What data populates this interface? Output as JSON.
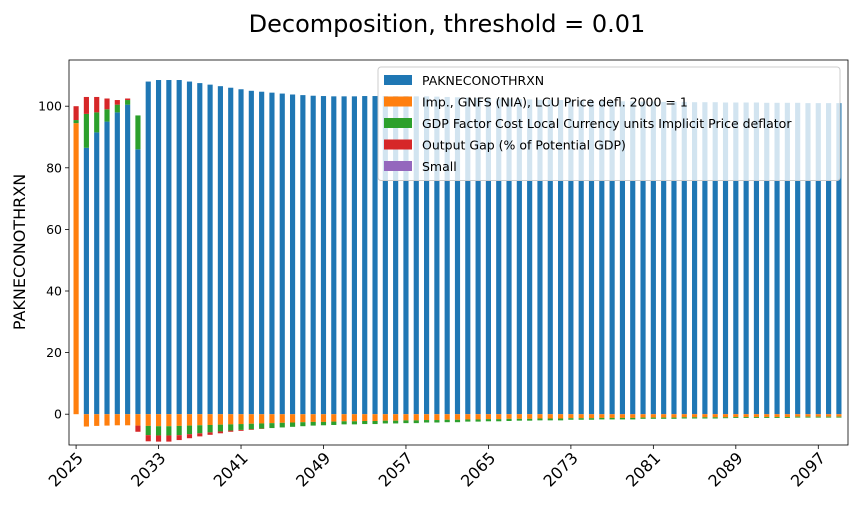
{
  "chart_data": {
    "type": "bar",
    "stacked": true,
    "title": "Decomposition, threshold = 0.01",
    "xlabel": "",
    "ylabel": "PAKNECONOTHRXN",
    "ylim": [
      -10,
      115
    ],
    "yticks": [
      0,
      20,
      40,
      60,
      80,
      100
    ],
    "xticks": [
      "2025",
      "2033",
      "2041",
      "2049",
      "2057",
      "2065",
      "2073",
      "2081",
      "2089",
      "2097"
    ],
    "grid": false,
    "legend_position": "top-right",
    "x": [
      2025,
      2026,
      2027,
      2028,
      2029,
      2030,
      2031,
      2032,
      2033,
      2034,
      2035,
      2036,
      2037,
      2038,
      2039,
      2040,
      2041,
      2042,
      2043,
      2044,
      2045,
      2046,
      2047,
      2048,
      2049,
      2050,
      2051,
      2052,
      2053,
      2054,
      2055,
      2056,
      2057,
      2058,
      2059,
      2060,
      2061,
      2062,
      2063,
      2064,
      2065,
      2066,
      2067,
      2068,
      2069,
      2070,
      2071,
      2072,
      2073,
      2074,
      2075,
      2076,
      2077,
      2078,
      2079,
      2080,
      2081,
      2082,
      2083,
      2084,
      2085,
      2086,
      2087,
      2088,
      2089,
      2090,
      2091,
      2092,
      2093,
      2094,
      2095,
      2096,
      2097,
      2098,
      2099
    ],
    "series": [
      {
        "name": "PAKNECONOTHRXN",
        "color": "#1f77b4",
        "values": [
          0,
          86.5,
          91.5,
          95,
          98,
          100.5,
          86,
          108,
          108.5,
          108.5,
          108.5,
          108,
          107.5,
          107,
          106.5,
          106,
          105.5,
          105,
          104.7,
          104.4,
          104.1,
          103.8,
          103.6,
          103.4,
          103.3,
          103.2,
          103.2,
          103.2,
          103.3,
          103.3,
          103.3,
          103.3,
          103.3,
          103.2,
          103.2,
          103.1,
          103,
          102.9,
          102.8,
          102.7,
          102.6,
          102.5,
          102.4,
          102.3,
          102.2,
          102.1,
          102.1,
          102,
          101.9,
          101.9,
          101.8,
          101.7,
          101.7,
          101.6,
          101.6,
          101.5,
          101.5,
          101.4,
          101.4,
          101.4,
          101.3,
          101.3,
          101.3,
          101.2,
          101.2,
          101.2,
          101.2,
          101.1,
          101.1,
          101.1,
          101.1,
          101,
          101,
          101,
          101
        ]
      },
      {
        "name": "Imp., GNFS (NIA), LCU Price defl. 2000 = 1",
        "color": "#ff7f0e",
        "values": [
          94.5,
          -4,
          -3.8,
          -3.7,
          -3.6,
          -3.6,
          -3.7,
          -3.8,
          -3.9,
          -3.9,
          -3.8,
          -3.7,
          -3.6,
          -3.5,
          -3.4,
          -3.3,
          -3.2,
          -3.1,
          -3,
          -2.9,
          -2.8,
          -2.7,
          -2.6,
          -2.5,
          -2.5,
          -2.4,
          -2.3,
          -2.3,
          -2.2,
          -2.2,
          -2.1,
          -2.1,
          -2,
          -2,
          -1.9,
          -1.9,
          -1.8,
          -1.8,
          -1.7,
          -1.7,
          -1.6,
          -1.6,
          -1.5,
          -1.5,
          -1.5,
          -1.4,
          -1.4,
          -1.4,
          -1.3,
          -1.3,
          -1.3,
          -1.2,
          -1.2,
          -1.2,
          -1.2,
          -1.1,
          -1.1,
          -1.1,
          -1.1,
          -1,
          -1,
          -1,
          -1,
          -1,
          -0.9,
          -0.9,
          -0.9,
          -0.9,
          -0.9,
          -0.9,
          -0.8,
          -0.8,
          -0.8,
          -0.8,
          -0.8
        ]
      },
      {
        "name": "GDP Factor Cost Local Currency units Implicit Price deflator",
        "color": "#2ca02c",
        "values": [
          1,
          11,
          6.5,
          4,
          2.5,
          1.5,
          11,
          -3,
          -3,
          -3,
          -3,
          -2.8,
          -2.6,
          -2.4,
          -2.2,
          -2,
          -1.9,
          -1.8,
          -1.7,
          -1.6,
          -1.5,
          -1.4,
          -1.3,
          -1.2,
          -1.1,
          -1.1,
          -1,
          -1,
          -1,
          -1,
          -0.9,
          -0.9,
          -0.9,
          -0.9,
          -0.8,
          -0.8,
          -0.8,
          -0.8,
          -0.7,
          -0.7,
          -0.7,
          -0.7,
          -0.7,
          -0.6,
          -0.6,
          -0.6,
          -0.6,
          -0.6,
          -0.5,
          -0.5,
          -0.5,
          -0.5,
          -0.5,
          -0.5,
          -0.5,
          -0.4,
          -0.4,
          -0.4,
          -0.4,
          -0.4,
          -0.4,
          -0.4,
          -0.4,
          -0.3,
          -0.3,
          -0.3,
          -0.3,
          -0.3,
          -0.3,
          -0.3,
          -0.3,
          -0.3,
          -0.3,
          -0.3,
          -0.3
        ]
      },
      {
        "name": "Output Gap (% of Potential GDP)",
        "color": "#d62728",
        "values": [
          4.5,
          5.5,
          5,
          3.5,
          1.5,
          0.5,
          -2,
          -2,
          -2,
          -2,
          -1.6,
          -1.3,
          -1,
          -0.8,
          -0.6,
          -0.4,
          -0.3,
          -0.2,
          -0.1,
          0,
          0,
          0,
          0,
          0,
          0,
          0,
          0,
          0,
          0,
          0,
          0,
          0,
          0,
          0,
          0,
          0,
          0,
          0,
          0,
          0,
          0,
          0,
          0,
          0,
          0,
          0,
          0,
          0,
          0,
          0,
          0,
          0,
          0,
          0,
          0,
          0,
          0,
          0,
          0,
          0,
          0,
          0,
          0,
          0,
          0,
          0,
          0,
          0,
          0,
          0,
          0,
          0,
          0,
          0,
          0
        ]
      },
      {
        "name": "Small",
        "color": "#9467bd",
        "values": [
          0,
          0,
          0,
          0,
          0,
          0,
          0,
          0,
          0,
          0,
          0,
          0,
          0,
          0,
          0,
          0,
          0,
          0,
          0,
          0,
          0,
          0,
          0,
          0,
          0,
          0,
          0,
          0,
          0,
          0,
          0,
          0,
          0,
          0,
          0,
          0,
          0,
          0,
          0,
          0,
          0,
          0,
          0,
          0,
          0,
          0,
          0,
          0,
          0,
          0,
          0,
          0,
          0,
          0,
          0,
          0,
          0,
          0,
          0,
          0,
          0,
          0,
          0,
          0,
          0,
          0,
          0,
          0,
          0,
          0,
          0,
          0,
          0,
          0,
          0
        ]
      }
    ]
  }
}
